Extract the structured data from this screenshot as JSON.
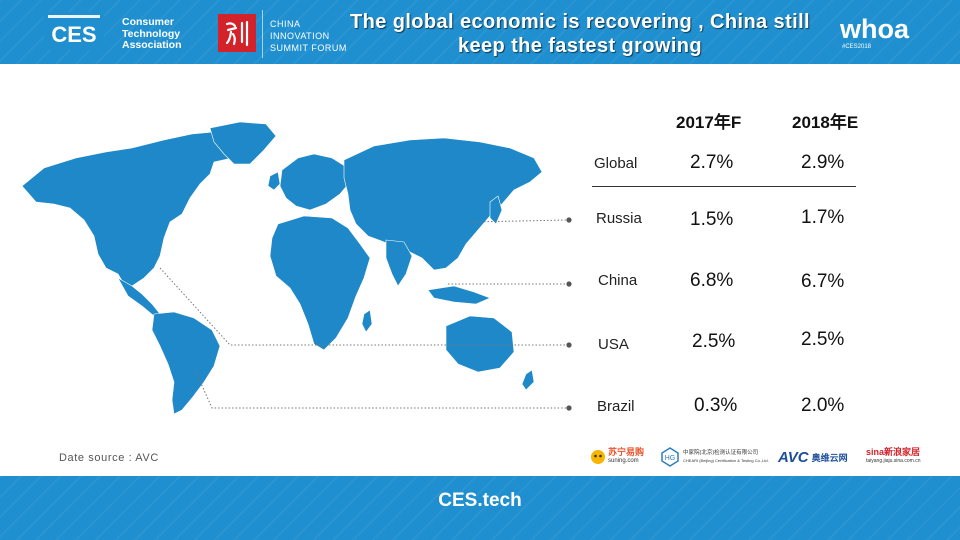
{
  "header": {
    "ces_logo_text": "CES",
    "ces_org_lines": [
      "Consumer",
      "Technology",
      "Association"
    ],
    "cif_lines": [
      "CHINA",
      "INNOVATION",
      "SUMMIT FORUM"
    ],
    "title_lines": [
      "The global economic is recovering , China still",
      "keep the fastest growing"
    ],
    "whoa_text": "whoa",
    "whoa_tag": "#CES2018"
  },
  "table": {
    "columns": [
      "2017年F",
      "2018年E"
    ],
    "rows": [
      {
        "label": "Global",
        "v2017": "2.7%",
        "v2018": "2.9%"
      },
      {
        "label": "Russia",
        "v2017": "1.5%",
        "v2018": "1.7%"
      },
      {
        "label": "China",
        "v2017": "6.8%",
        "v2018": "6.7%"
      },
      {
        "label": "USA",
        "v2017": "2.5%",
        "v2018": "2.5%"
      },
      {
        "label": "Brazil",
        "v2017": "0.3%",
        "v2018": "2.0%"
      }
    ]
  },
  "source": "Date source : AVC",
  "sponsors": {
    "suning": "苏宁易购",
    "suning_sub": "suning.com",
    "cheari": "中家院(北京)检测认证有限公司",
    "cheari_sub": "CHEARI (Beijing) Certification & Testing Co.,Ltd.",
    "avc": "AVC",
    "avc_cn": "奥维云网",
    "sina": "sina新浪家居",
    "sina_sub": "taiyang.jiaju.sina.com.cn"
  },
  "footer": {
    "text": "CES.tech"
  },
  "colors": {
    "band": "#1f8fcf",
    "map": "#1e88c8",
    "accent_red": "#d4222b"
  }
}
